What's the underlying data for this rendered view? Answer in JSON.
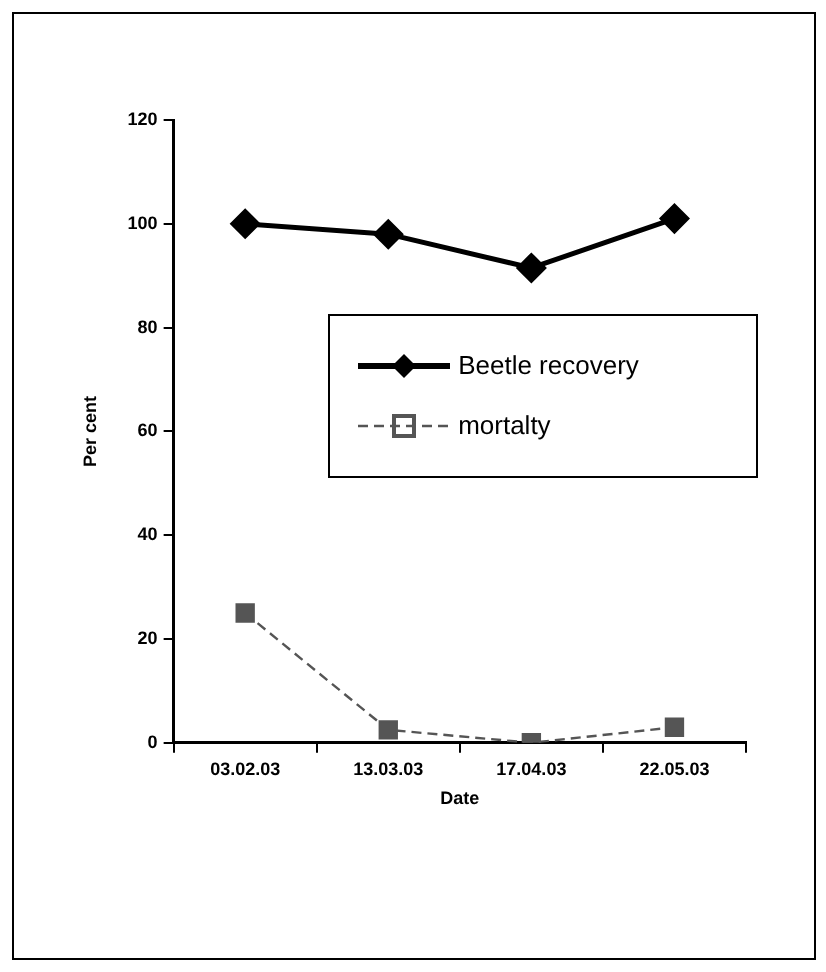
{
  "chart_data": {
    "type": "line",
    "xlabel": "Date",
    "ylabel": "Per cent",
    "categories": [
      "03.02.03",
      "13.03.03",
      "17.04.03",
      "22.05.03"
    ],
    "series": [
      {
        "name": "Beetle recovery",
        "color": "#000000",
        "values": [
          100,
          98,
          91.5,
          101
        ],
        "marker": "diamond",
        "line_style": "solid"
      },
      {
        "name": "mortalty",
        "color": "#555555",
        "values": [
          25,
          2.5,
          0,
          3
        ],
        "marker": "square",
        "line_style": "dashed"
      }
    ],
    "ylim": [
      0,
      120
    ],
    "yticks": [
      0,
      20,
      40,
      60,
      80,
      100,
      120
    ],
    "grid": false,
    "legend": "right"
  }
}
